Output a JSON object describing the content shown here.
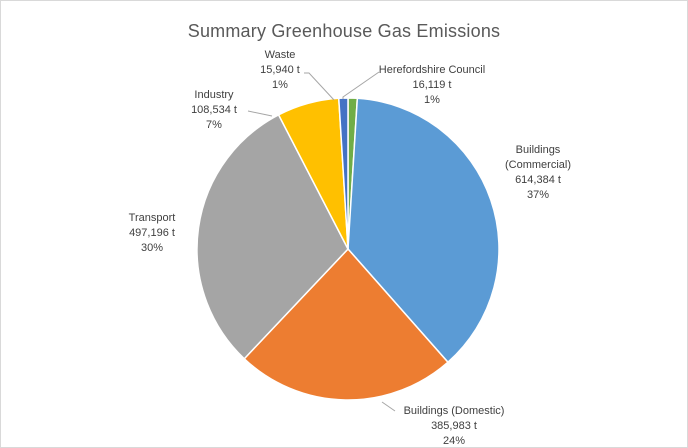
{
  "chart_data": {
    "type": "pie",
    "title": "Summary Greenhouse Gas Emissions",
    "slices": [
      {
        "name": "Herefordshire Council",
        "value": 16119,
        "value_label": "16,119 t",
        "percent_label": "1%",
        "color": "#70ad47"
      },
      {
        "name": "Buildings (Commercial)",
        "value": 614384,
        "value_label": "614,384 t",
        "percent_label": "37%",
        "color": "#5b9bd5"
      },
      {
        "name": "Buildings (Domestic)",
        "value": 385983,
        "value_label": "385,983 t",
        "percent_label": "24%",
        "color": "#ed7d31"
      },
      {
        "name": "Transport",
        "value": 497196,
        "value_label": "497,196 t",
        "percent_label": "30%",
        "color": "#a5a5a5"
      },
      {
        "name": "Industry",
        "value": 108534,
        "value_label": "108,534 t",
        "percent_label": "7%",
        "color": "#ffc000"
      },
      {
        "name": "Waste",
        "value": 15940,
        "value_label": "15,940 t",
        "percent_label": "1%",
        "color": "#4472c4"
      }
    ],
    "label_text": [
      [
        "Herefordshire Council"
      ],
      [
        "Buildings",
        "(Commercial)"
      ],
      [
        "Buildings (Domestic)"
      ],
      [
        "Transport"
      ],
      [
        "Industry"
      ],
      [
        "Waste"
      ]
    ]
  }
}
